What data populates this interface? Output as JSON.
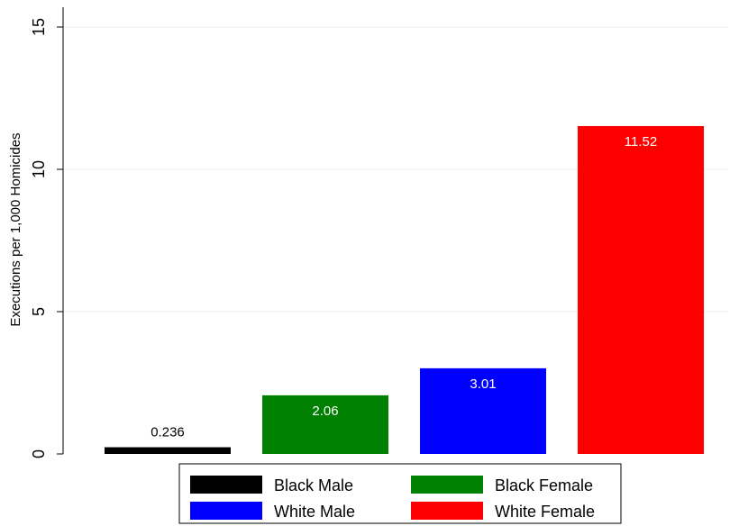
{
  "chart_data": {
    "type": "bar",
    "categories": [
      "Black Male",
      "Black Female",
      "White Male",
      "White Female"
    ],
    "values": [
      0.236,
      2.06,
      3.01,
      11.52
    ],
    "value_labels": [
      "0.236",
      "2.06",
      "3.01",
      "11.52"
    ],
    "colors": [
      "#000000",
      "#008000",
      "#0000ff",
      "#ff0000"
    ],
    "ylabel": "Executions per 1,000 Homicides",
    "xlabel": "",
    "ylim": [
      0,
      15
    ],
    "yticks": [
      0,
      5,
      10,
      15
    ],
    "ytick_labels": [
      "0",
      "5",
      "10",
      "15"
    ],
    "grid": true,
    "legend_position": "bottom"
  }
}
